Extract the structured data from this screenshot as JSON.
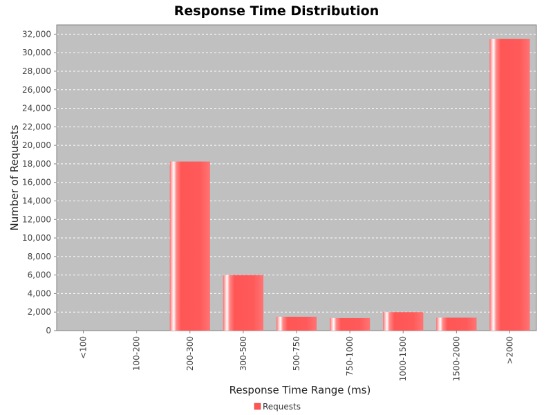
{
  "chart_data": {
    "type": "bar",
    "title": "Response Time Distribution",
    "xlabel": "Response Time Range (ms)",
    "ylabel": "Number of Requests",
    "categories": [
      "<100",
      "100-200",
      "200-300",
      "300-500",
      "500-750",
      "750-1000",
      "1000-1500",
      "1500-2000",
      ">2000"
    ],
    "series": [
      {
        "name": "Requests",
        "values": [
          0,
          0,
          18250,
          6000,
          1500,
          1350,
          2000,
          1400,
          31500
        ]
      }
    ],
    "ylim": [
      0,
      33000
    ],
    "yticks": [
      0,
      2000,
      4000,
      6000,
      8000,
      10000,
      12000,
      14000,
      16000,
      18000,
      20000,
      22000,
      24000,
      26000,
      28000,
      30000,
      32000
    ],
    "ytick_labels": [
      "0",
      "2,000",
      "4,000",
      "6,000",
      "8,000",
      "10,000",
      "12,000",
      "14,000",
      "16,000",
      "18,000",
      "20,000",
      "22,000",
      "24,000",
      "26,000",
      "28,000",
      "30,000",
      "32,000"
    ],
    "grid": true,
    "legend_position": "bottom-center",
    "colors": {
      "bar": "#ff5555",
      "bar_highlight": "#ffffff",
      "plot_background": "#c0c0c0",
      "grid": "#ffffff"
    }
  }
}
